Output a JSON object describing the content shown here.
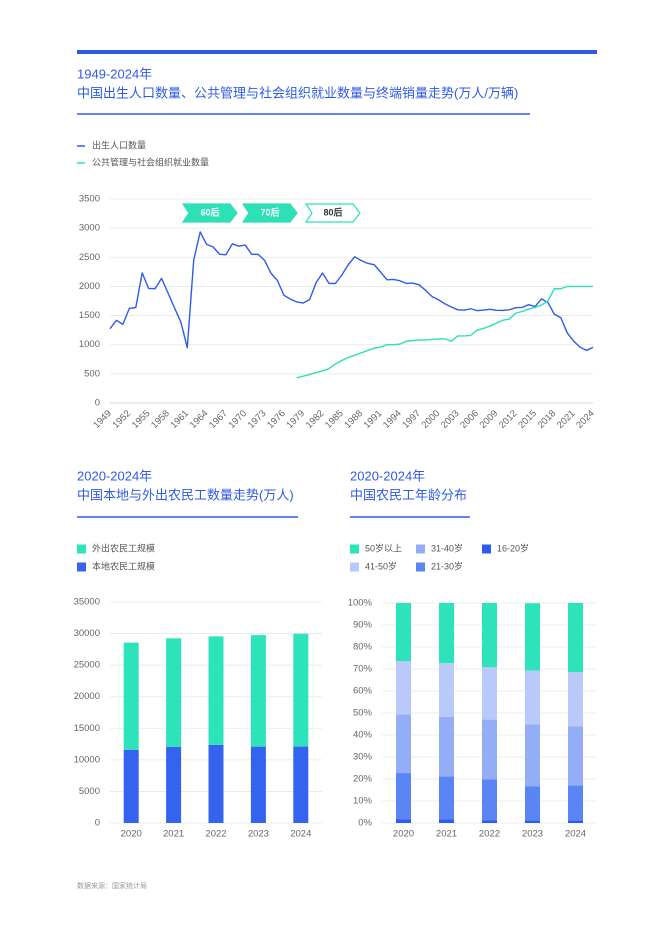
{
  "chart_data": [
    {
      "type": "line",
      "title": "1949-2024年",
      "subtitle": "中国出生人口数量、公共管理与社会组织就业数量与终端销量走势(万人/万辆)",
      "annotations": [
        "60后",
        "70后",
        "80后"
      ],
      "x": [
        1949,
        1950,
        1951,
        1952,
        1953,
        1954,
        1955,
        1956,
        1957,
        1958,
        1959,
        1960,
        1961,
        1962,
        1963,
        1964,
        1965,
        1966,
        1967,
        1968,
        1969,
        1970,
        1971,
        1972,
        1973,
        1974,
        1975,
        1976,
        1977,
        1978,
        1979,
        1980,
        1981,
        1982,
        1983,
        1984,
        1985,
        1986,
        1987,
        1988,
        1989,
        1990,
        1991,
        1992,
        1993,
        1994,
        1995,
        1996,
        1997,
        1998,
        1999,
        2000,
        2001,
        2002,
        2003,
        2004,
        2005,
        2006,
        2007,
        2008,
        2009,
        2010,
        2011,
        2012,
        2013,
        2014,
        2015,
        2016,
        2017,
        2018,
        2019,
        2020,
        2021,
        2022,
        2023,
        2024
      ],
      "series": [
        {
          "name": "出生人口数量",
          "color": "#2f5bea",
          "values": [
            1275,
            1419,
            1349,
            1622,
            1637,
            2232,
            1965,
            1961,
            2138,
            1889,
            1635,
            1389,
            949,
            2451,
            2934,
            2721,
            2679,
            2554,
            2543,
            2731,
            2690,
            2710,
            2551,
            2550,
            2447,
            2226,
            2102,
            1849,
            1783,
            1733,
            1715,
            1776,
            2064,
            2230,
            2052,
            2050,
            2196,
            2374,
            2508,
            2445,
            2396,
            2374,
            2250,
            2113,
            2120,
            2098,
            2052,
            2057,
            2028,
            1934,
            1827,
            1771,
            1702,
            1647,
            1599,
            1593,
            1617,
            1585,
            1595,
            1608,
            1591,
            1588,
            1600,
            1635,
            1640,
            1687,
            1655,
            1786,
            1723,
            1523,
            1465,
            1202,
            1062,
            956,
            902,
            954
          ]
        },
        {
          "name": "公共管理与社会组织就业数量",
          "color": "#2de0b5",
          "values": [
            null,
            null,
            null,
            null,
            null,
            null,
            null,
            null,
            null,
            null,
            null,
            null,
            null,
            null,
            null,
            null,
            null,
            null,
            null,
            null,
            null,
            null,
            null,
            null,
            null,
            null,
            null,
            null,
            null,
            430,
            460,
            490,
            520,
            550,
            590,
            670,
            730,
            780,
            820,
            860,
            900,
            940,
            960,
            1000,
            1000,
            1010,
            1060,
            1070,
            1080,
            1080,
            1090,
            1100,
            1100,
            1060,
            1150,
            1150,
            1160,
            1250,
            1280,
            1320,
            1370,
            1420,
            1440,
            1540,
            1570,
            1610,
            1640,
            1680,
            1750,
            1960,
            1960,
            2000,
            2000,
            2000,
            2000,
            2000
          ]
        }
      ],
      "xlim": [
        1949,
        2024
      ],
      "xticks": [
        1949,
        1952,
        1955,
        1958,
        1961,
        1964,
        1967,
        1970,
        1973,
        1976,
        1979,
        1982,
        1985,
        1988,
        1991,
        1994,
        1997,
        2000,
        2003,
        2006,
        2009,
        2012,
        2015,
        2018,
        2021,
        2024
      ],
      "ylim": [
        0,
        3500
      ],
      "yticks": [
        0,
        500,
        1000,
        1500,
        2000,
        2500,
        3000,
        3500
      ],
      "grid": true
    },
    {
      "type": "bar",
      "stacked": true,
      "title": "2020-2024年",
      "subtitle": "中国本地与外出农民工数量走势(万人)",
      "categories": [
        "2020",
        "2021",
        "2022",
        "2023",
        "2024"
      ],
      "series": [
        {
          "name": "本地农民工规模",
          "color": "#3463f0",
          "values": [
            11601,
            12079,
            12372,
            12095,
            12102
          ]
        },
        {
          "name": "外出农民工规模",
          "color": "#2de3b9",
          "values": [
            16959,
            17172,
            17190,
            17658,
            17871
          ]
        }
      ],
      "ylim": [
        0,
        35000
      ],
      "yticks": [
        0,
        5000,
        10000,
        15000,
        20000,
        25000,
        30000,
        35000
      ],
      "grid": true
    },
    {
      "type": "bar",
      "stacked": true,
      "title": "2020-2024年",
      "subtitle": "中国农民工年龄分布",
      "categories": [
        "2020",
        "2021",
        "2022",
        "2023",
        "2024"
      ],
      "series": [
        {
          "name": "16-20岁",
          "color": "#2d5cf0",
          "values": [
            1.6,
            1.6,
            1.3,
            1.2,
            1.2
          ]
        },
        {
          "name": "21-30岁",
          "color": "#5a85f5",
          "values": [
            21.1,
            19.6,
            18.5,
            15.4,
            15.9
          ]
        },
        {
          "name": "31-40岁",
          "color": "#93aef7",
          "values": [
            26.7,
            27.0,
            27.2,
            28.3,
            26.9
          ]
        },
        {
          "name": "41-50岁",
          "color": "#b9c9f9",
          "values": [
            24.2,
            24.5,
            23.8,
            24.4,
            24.6
          ]
        },
        {
          "name": "50岁以上",
          "color": "#2de3b9",
          "values": [
            26.4,
            27.3,
            29.2,
            30.6,
            31.4
          ]
        }
      ],
      "ylim": [
        0,
        100
      ],
      "yticks": [
        {
          "value": 0,
          "label": "0%"
        },
        {
          "value": 10,
          "label": "10%"
        },
        {
          "value": 20,
          "label": "20%"
        },
        {
          "value": 30,
          "label": "30%"
        },
        {
          "value": 40,
          "label": "40%"
        },
        {
          "value": 50,
          "label": "50%"
        },
        {
          "value": 60,
          "label": "60%"
        },
        {
          "value": 70,
          "label": "70%"
        },
        {
          "value": 80,
          "label": "80%"
        },
        {
          "value": 90,
          "label": "90%"
        },
        {
          "value": 100,
          "label": "100%"
        }
      ],
      "grid": true
    }
  ],
  "source": "数据来源：国家统计局"
}
